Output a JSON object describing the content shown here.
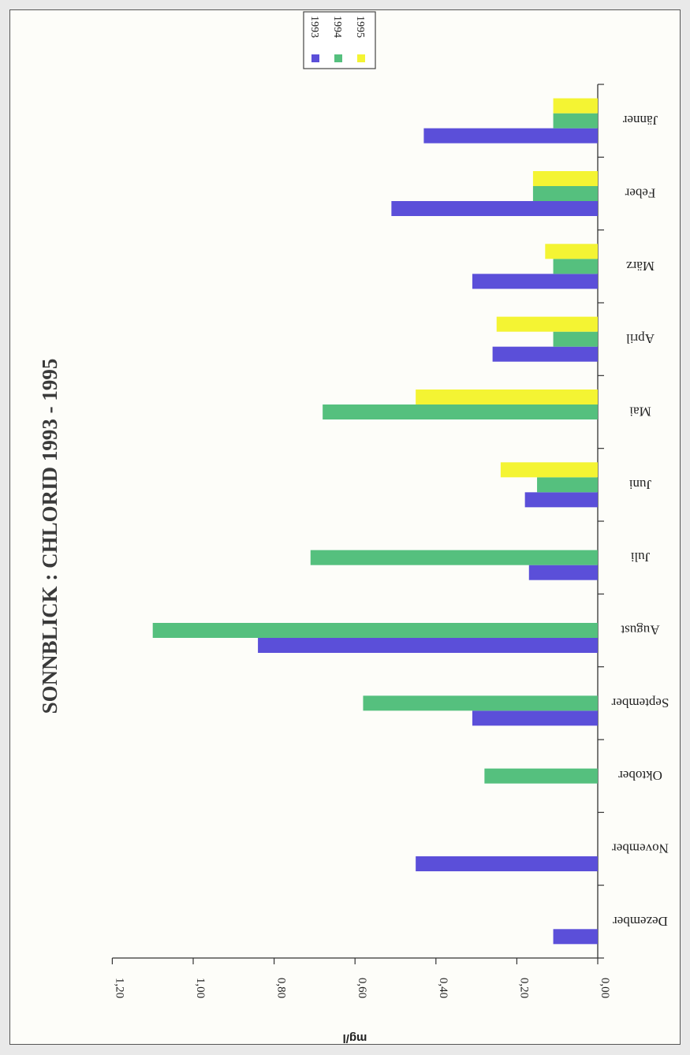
{
  "chart_data": {
    "type": "bar",
    "orientation": "horizontal",
    "title": "SONNBLICK : CHLORID 1993 - 1995",
    "ylabel": "mg/l",
    "ylim": [
      0,
      1.2
    ],
    "tick_values": [
      0,
      0.2,
      0.4,
      0.6,
      0.8,
      1.0,
      1.2
    ],
    "tick_labels": [
      "0,00",
      "0,20",
      "0,40",
      "0,60",
      "0,80",
      "1,00",
      "1,20"
    ],
    "categories": [
      "Jänner",
      "Feber",
      "März",
      "April",
      "Mai",
      "Juni",
      "Juli",
      "August",
      "September",
      "Oktober",
      "November",
      "Dezember"
    ],
    "series": [
      {
        "name": "1993",
        "color": "#5b4fd9",
        "values": [
          0.43,
          0.51,
          0.31,
          0.26,
          null,
          0.18,
          0.17,
          0.84,
          0.31,
          null,
          0.45,
          0.11
        ]
      },
      {
        "name": "1994",
        "color": "#55c07e",
        "values": [
          0.11,
          0.16,
          0.11,
          0.11,
          0.68,
          0.15,
          0.71,
          1.1,
          0.58,
          0.28,
          null,
          null
        ]
      },
      {
        "name": "1995",
        "color": "#f4f433",
        "values": [
          0.11,
          0.16,
          0.13,
          0.25,
          0.45,
          0.24,
          null,
          null,
          null,
          null,
          null,
          null
        ]
      }
    ],
    "legend": {
      "position": "top-right",
      "entries": [
        "1993",
        "1994",
        "1995"
      ]
    },
    "grid": false
  }
}
